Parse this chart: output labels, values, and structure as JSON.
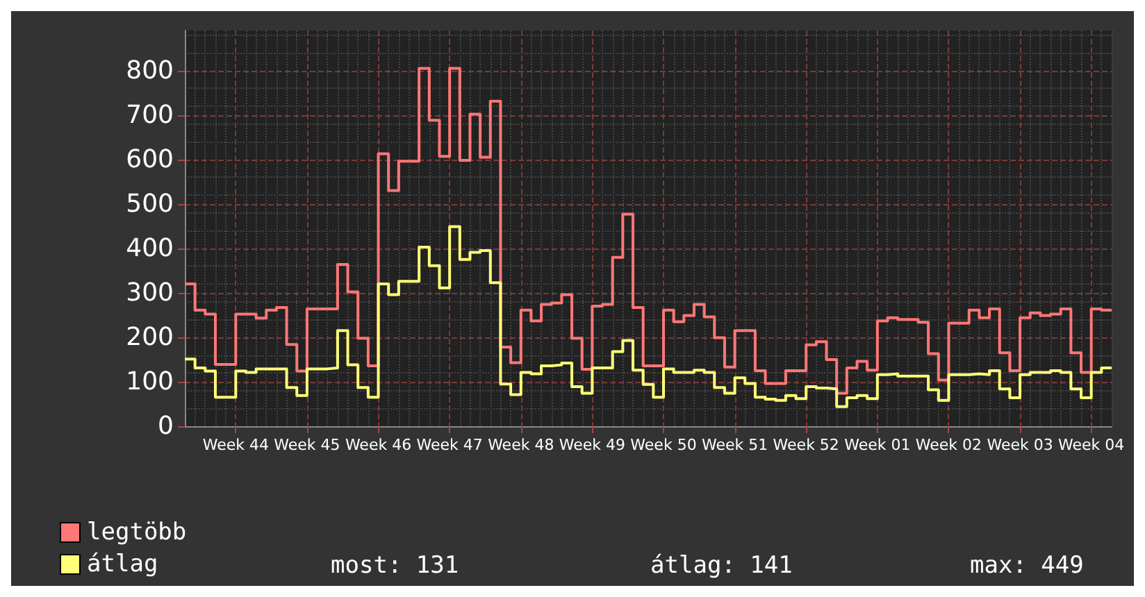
{
  "chart_data": {
    "type": "step",
    "categories": [
      null,
      null,
      null,
      null,
      null,
      "Week 44",
      null,
      null,
      null,
      null,
      null,
      null,
      "Week 45",
      null,
      null,
      null,
      null,
      null,
      null,
      "Week 46",
      null,
      null,
      null,
      null,
      null,
      null,
      "Week 47",
      null,
      null,
      null,
      null,
      null,
      null,
      "Week 48",
      null,
      null,
      null,
      null,
      null,
      null,
      "Week 49",
      null,
      null,
      null,
      null,
      null,
      null,
      "Week 50",
      null,
      null,
      null,
      null,
      null,
      null,
      "Week 51",
      null,
      null,
      null,
      null,
      null,
      null,
      "Week 52",
      null,
      null,
      null,
      null,
      null,
      null,
      "Week 01",
      null,
      null,
      null,
      null,
      null,
      null,
      "Week 02",
      null,
      null,
      null,
      null,
      null,
      null,
      "Week 03",
      null,
      null,
      null,
      null,
      null,
      null,
      "Week 04",
      null,
      null
    ],
    "ylim": [
      0,
      890
    ],
    "yticks": [
      0,
      100,
      200,
      300,
      400,
      500,
      600,
      700,
      800
    ],
    "grid": true,
    "legend": "bottom left",
    "marker": "none",
    "annotations": [
      "most: 131",
      "átlag: 141",
      "max: 449"
    ],
    "series": [
      {
        "name": "legtöbb",
        "color": "#ff7777",
        "values": [
          320,
          261,
          252,
          139,
          139,
          252,
          252,
          243,
          261,
          267,
          184,
          124,
          264,
          264,
          264,
          364,
          302,
          198,
          136,
          613,
          530,
          596,
          596,
          805,
          688,
          607,
          805,
          598,
          702,
          605,
          731,
          178,
          143,
          261,
          237,
          274,
          277,
          296,
          198,
          128,
          270,
          274,
          380,
          477,
          267,
          136,
          136,
          261,
          235,
          249,
          274,
          246,
          199,
          133,
          215,
          215,
          125,
          96,
          96,
          125,
          125,
          183,
          190,
          150,
          74,
          131,
          146,
          126,
          237,
          244,
          240,
          240,
          234,
          163,
          104,
          232,
          232,
          261,
          244,
          264,
          165,
          125,
          244,
          255,
          249,
          252,
          264,
          165,
          121,
          264,
          261,
          261
        ]
      },
      {
        "name": "átlag",
        "color": "#ffff77",
        "values": [
          151,
          131,
          124,
          65,
          65,
          124,
          121,
          129,
          129,
          129,
          87,
          69,
          129,
          129,
          131,
          215,
          138,
          87,
          65,
          320,
          296,
          326,
          326,
          403,
          361,
          311,
          449,
          375,
          391,
          395,
          323,
          95,
          71,
          121,
          118,
          136,
          138,
          142,
          89,
          74,
          131,
          131,
          168,
          193,
          126,
          94,
          65,
          129,
          121,
          121,
          126,
          121,
          87,
          74,
          109,
          96,
          65,
          61,
          58,
          69,
          62,
          89,
          86,
          84,
          44,
          64,
          69,
          62,
          116,
          118,
          113,
          113,
          113,
          82,
          58,
          116,
          116,
          118,
          116,
          125,
          84,
          64,
          116,
          121,
          121,
          125,
          121,
          84,
          64,
          121,
          131,
          131
        ]
      }
    ]
  }
}
